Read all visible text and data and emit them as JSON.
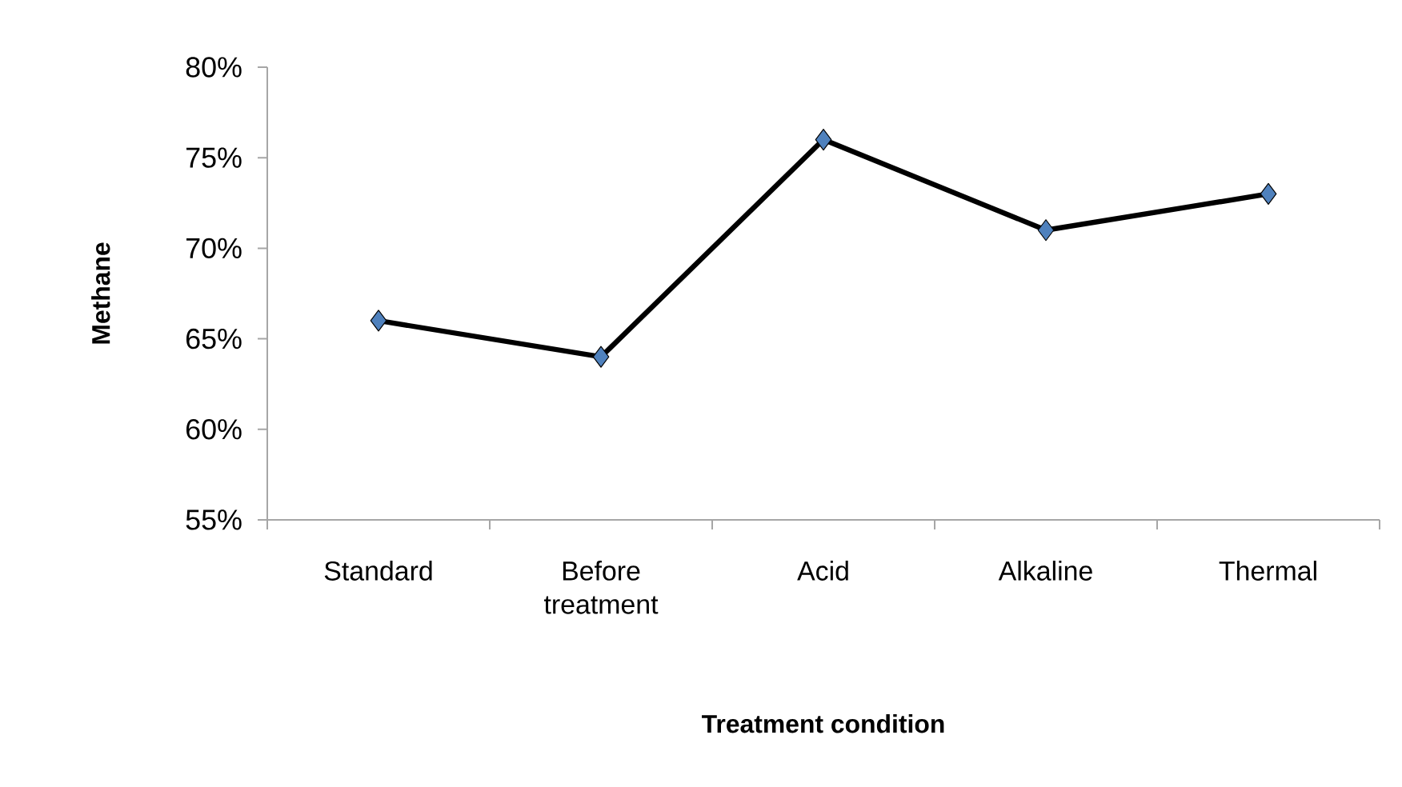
{
  "chart_data": {
    "type": "line",
    "xlabel": "Treatment condition",
    "ylabel": "Methane",
    "categories": [
      "Standard",
      "Before treatment",
      "Acid",
      "Alkaline",
      "Thermal"
    ],
    "series": [
      {
        "color": "#000000",
        "values": [
          66,
          64,
          76,
          71,
          73
        ]
      }
    ],
    "ylim": [
      55,
      80
    ],
    "yticks": [
      {
        "value": 55,
        "label": "55%"
      },
      {
        "value": 60,
        "label": "60%"
      },
      {
        "value": 65,
        "label": "65%"
      },
      {
        "value": 70,
        "label": "70%"
      },
      {
        "value": 75,
        "label": "75%"
      },
      {
        "value": 80,
        "label": "80%"
      }
    ],
    "marker": "diamond",
    "line_style": "solid",
    "grid": false
  }
}
